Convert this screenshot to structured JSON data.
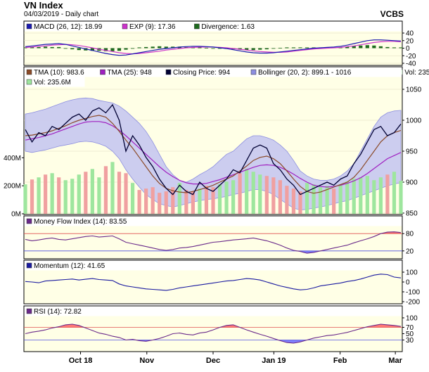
{
  "header": {
    "title": "VN Index",
    "subtitle": "04/03/2019 - Daily chart",
    "brand": "VCBS"
  },
  "colors": {
    "panel_bg": "#ffffe6",
    "price": "#000033",
    "tma10": "#8b4a28",
    "tma25": "#a020c0",
    "bollinger_fill": "#c6c8f0",
    "bollinger_line": "#8c8ee0",
    "macd": "#1a1ab0",
    "exp": "#cc33cc",
    "divergence": "#1e6a1e",
    "vol_up": "#9ee69e",
    "vol_down": "#f0a0a0",
    "mfi": "#6a2a8a",
    "momentum": "#1a1aa0",
    "rsi": "#6a2a8a",
    "overbought": "#ff6060",
    "oversold": "#6a6aff"
  },
  "chart_data": [
    {
      "type": "line",
      "panel": "macd",
      "legend": [
        {
          "label": "MACD (26, 12): 18.99",
          "color": "#1a1ab0"
        },
        {
          "label": "EXP (9): 17.36",
          "color": "#cc33cc"
        },
        {
          "label": "Divergence: 1.63",
          "color": "#1e6a1e"
        }
      ],
      "ylim": [
        -40,
        40
      ],
      "yticks": [
        -40,
        -20,
        0,
        20,
        40
      ],
      "series": [
        {
          "name": "MACD",
          "values": [
            4,
            6,
            8,
            10,
            11,
            12,
            10,
            6,
            2,
            -2,
            -6,
            -10,
            -14,
            -17,
            -19,
            -18,
            -15,
            -12,
            -9,
            -6,
            -3,
            -1,
            1,
            3,
            4,
            5,
            5,
            4,
            3,
            1,
            -1,
            -4,
            -7,
            -10,
            -12,
            -13,
            -13,
            -12,
            -10,
            -8,
            -6,
            -4,
            -2,
            0,
            1,
            2,
            3,
            5,
            8,
            12,
            16,
            20,
            22,
            22,
            21,
            20,
            19
          ]
        },
        {
          "name": "EXP",
          "values": [
            2,
            3,
            5,
            6,
            8,
            9,
            10,
            9,
            7,
            4,
            1,
            -3,
            -6,
            -9,
            -12,
            -14,
            -15,
            -14,
            -12,
            -10,
            -8,
            -5,
            -3,
            -1,
            1,
            2,
            3,
            3,
            3,
            2,
            1,
            -1,
            -3,
            -5,
            -7,
            -9,
            -10,
            -11,
            -11,
            -10,
            -8,
            -6,
            -4,
            -2,
            -1,
            0,
            1,
            2,
            4,
            6,
            9,
            12,
            15,
            17,
            18,
            18,
            17
          ]
        },
        {
          "name": "Divergence",
          "values": [
            2,
            3,
            3,
            4,
            3,
            3,
            0,
            -3,
            -5,
            -6,
            -7,
            -7,
            -8,
            -8,
            -7,
            -4,
            0,
            2,
            3,
            4,
            5,
            4,
            4,
            4,
            3,
            3,
            2,
            1,
            0,
            -1,
            -2,
            -3,
            -4,
            -5,
            -5,
            -4,
            -3,
            -1,
            1,
            2,
            2,
            2,
            2,
            2,
            2,
            2,
            2,
            3,
            4,
            6,
            7,
            8,
            7,
            5,
            3,
            2,
            2
          ]
        }
      ]
    },
    {
      "type": "line",
      "panel": "price",
      "legend": [
        {
          "label": "TMA (10): 983.6",
          "color": "#8b4a28"
        },
        {
          "label": "TMA (25): 948",
          "color": "#a020c0"
        },
        {
          "label": "Closing Price: 994",
          "color": "#000033"
        },
        {
          "label": "Bollinger (20, 2): 899.1 - 1016",
          "color": "#8c8ee0"
        },
        {
          "label": "Vol: 235.6M",
          "color": "#9ee69e"
        }
      ],
      "ylim": [
        850,
        1050
      ],
      "yticks": [
        850,
        900,
        950,
        1000,
        1050
      ],
      "vol_ylim": [
        0,
        800
      ],
      "vol_ticks": [
        {
          "value": 0,
          "label": "0M"
        },
        {
          "value": 200,
          "label": "200M"
        },
        {
          "value": 400,
          "label": "400M"
        }
      ],
      "series": [
        {
          "name": "Closing Price",
          "values": [
            985,
            965,
            980,
            975,
            990,
            985,
            995,
            1005,
            1010,
            1000,
            1015,
            1020,
            1012,
            1025,
            1000,
            950,
            975,
            960,
            940,
            925,
            905,
            890,
            880,
            895,
            885,
            880,
            900,
            890,
            885,
            895,
            905,
            920,
            915,
            935,
            955,
            960,
            955,
            930,
            920,
            905,
            895,
            880,
            885,
            890,
            895,
            900,
            895,
            905,
            910,
            930,
            945,
            965,
            985,
            990,
            975,
            980,
            994
          ]
        },
        {
          "name": "TMA (10)",
          "values": [
            975,
            976,
            978,
            980,
            983,
            987,
            991,
            996,
            1000,
            1003,
            1006,
            1008,
            1005,
            995,
            982,
            968,
            955,
            940,
            925,
            910,
            898,
            890,
            886,
            884,
            883,
            885,
            888,
            891,
            895,
            900,
            905,
            910,
            918,
            926,
            935,
            940,
            942,
            938,
            930,
            918,
            905,
            893,
            885,
            882,
            884,
            888,
            892,
            896,
            900,
            908,
            920,
            935,
            950,
            965,
            975,
            980,
            983.6
          ]
        },
        {
          "name": "TMA (25)",
          "values": [
            968,
            970,
            972,
            975,
            978,
            982,
            986,
            990,
            994,
            997,
            998,
            998,
            996,
            991,
            984,
            975,
            965,
            955,
            945,
            935,
            925,
            916,
            909,
            903,
            899,
            897,
            897,
            898,
            901,
            904,
            908,
            912,
            916,
            920,
            924,
            927,
            928,
            927,
            924,
            919,
            913,
            906,
            900,
            895,
            893,
            892,
            893,
            895,
            898,
            902,
            907,
            914,
            922,
            930,
            938,
            943,
            948
          ]
        },
        {
          "name": "Bollinger Upper",
          "values": [
            1010,
            1012,
            1015,
            1018,
            1022,
            1026,
            1030,
            1033,
            1035,
            1036,
            1035,
            1032,
            1030,
            1028,
            1023,
            1015,
            1005,
            995,
            982,
            965,
            945,
            925,
            912,
            903,
            900,
            905,
            912,
            918,
            925,
            935,
            945,
            950,
            960,
            970,
            975,
            975,
            972,
            968,
            960,
            950,
            935,
            918,
            910,
            905,
            903,
            903,
            905,
            910,
            918,
            930,
            950,
            970,
            990,
            1005,
            1012,
            1015,
            1016
          ]
        },
        {
          "name": "Bollinger Lower",
          "values": [
            950,
            948,
            950,
            952,
            955,
            958,
            960,
            962,
            965,
            966,
            965,
            962,
            958,
            950,
            938,
            920,
            905,
            892,
            880,
            872,
            865,
            862,
            860,
            862,
            865,
            868,
            870,
            872,
            873,
            875,
            877,
            880,
            882,
            885,
            888,
            888,
            885,
            880,
            872,
            865,
            858,
            855,
            856,
            858,
            860,
            862,
            865,
            868,
            870,
            874,
            878,
            882,
            886,
            890,
            894,
            897,
            899.1
          ]
        },
        {
          "name": "Vol",
          "values": [
            210,
            245,
            260,
            280,
            290,
            260,
            240,
            250,
            280,
            300,
            320,
            260,
            340,
            370,
            300,
            290,
            220,
            170,
            180,
            190,
            150,
            160,
            190,
            220,
            170,
            160,
            180,
            200,
            190,
            210,
            230,
            240,
            290,
            320,
            300,
            280,
            270,
            260,
            240,
            200,
            180,
            160,
            220,
            210,
            190,
            200,
            180,
            210,
            230,
            250,
            260,
            270,
            240,
            260,
            280,
            300,
            235.6
          ]
        },
        {
          "name": "Vol Up",
          "values": [
            1,
            0,
            1,
            0,
            1,
            0,
            1,
            1,
            1,
            0,
            1,
            1,
            0,
            1,
            0,
            0,
            1,
            0,
            0,
            0,
            0,
            0,
            0,
            1,
            0,
            0,
            1,
            0,
            0,
            1,
            1,
            1,
            0,
            1,
            1,
            1,
            0,
            0,
            0,
            0,
            0,
            0,
            1,
            1,
            1,
            1,
            0,
            1,
            1,
            1,
            1,
            1,
            1,
            1,
            0,
            1,
            1
          ]
        }
      ],
      "x_labels": [
        {
          "label": "Oct 18",
          "index": 10
        },
        {
          "label": "Nov",
          "index": 22
        },
        {
          "label": "Dec",
          "index": 34
        },
        {
          "label": "Jan 19",
          "index": 45
        },
        {
          "label": "Feb",
          "index": 57
        },
        {
          "label": "Mar",
          "index": 67
        }
      ]
    },
    {
      "type": "line",
      "panel": "mfi",
      "legend": [
        {
          "label": "Money Flow Index (14): 83.55",
          "color": "#6a2a8a"
        }
      ],
      "ylim": [
        0,
        100
      ],
      "yticks": [
        20,
        80
      ],
      "series": [
        {
          "name": "MFI",
          "values": [
            60,
            55,
            58,
            62,
            65,
            60,
            58,
            62,
            66,
            70,
            72,
            68,
            70,
            72,
            62,
            50,
            45,
            40,
            35,
            30,
            25,
            22,
            25,
            30,
            32,
            35,
            40,
            45,
            50,
            52,
            55,
            58,
            60,
            62,
            65,
            60,
            55,
            48,
            40,
            30,
            22,
            18,
            12,
            15,
            20,
            25,
            30,
            35,
            40,
            48,
            55,
            62,
            70,
            80,
            85,
            86,
            83.55
          ]
        }
      ]
    },
    {
      "type": "line",
      "panel": "momentum",
      "legend": [
        {
          "label": "Momentum (12): 41.65",
          "color": "#1a1aa0"
        }
      ],
      "ylim": [
        -200,
        100
      ],
      "yticks": [
        -200,
        -100,
        0,
        100
      ],
      "series": [
        {
          "name": "Momentum",
          "values": [
            5,
            0,
            -8,
            10,
            15,
            20,
            25,
            30,
            20,
            28,
            35,
            25,
            20,
            15,
            -20,
            -40,
            -50,
            -60,
            -70,
            -75,
            -80,
            -85,
            -75,
            -60,
            -50,
            -40,
            -30,
            -20,
            -10,
            0,
            10,
            15,
            25,
            35,
            30,
            20,
            0,
            -20,
            -40,
            -55,
            -70,
            -80,
            -75,
            -60,
            -40,
            -30,
            -20,
            -10,
            5,
            15,
            30,
            50,
            70,
            80,
            75,
            50,
            41.65
          ]
        }
      ]
    },
    {
      "type": "line",
      "panel": "rsi",
      "legend": [
        {
          "label": "RSI (14): 72.82",
          "color": "#6a2a8a"
        }
      ],
      "ylim": [
        0,
        100
      ],
      "yticks": [
        30,
        50,
        70,
        100
      ],
      "series": [
        {
          "name": "RSI",
          "values": [
            50,
            55,
            58,
            62,
            68,
            72,
            78,
            80,
            76,
            68,
            60,
            52,
            48,
            42,
            38,
            30,
            32,
            28,
            26,
            30,
            35,
            42,
            50,
            52,
            48,
            46,
            52,
            55,
            62,
            70,
            76,
            78,
            70,
            62,
            55,
            48,
            42,
            35,
            28,
            22,
            20,
            24,
            30,
            36,
            40,
            44,
            46,
            50,
            54,
            60,
            66,
            72,
            76,
            80,
            78,
            76,
            72.82
          ]
        }
      ]
    }
  ]
}
